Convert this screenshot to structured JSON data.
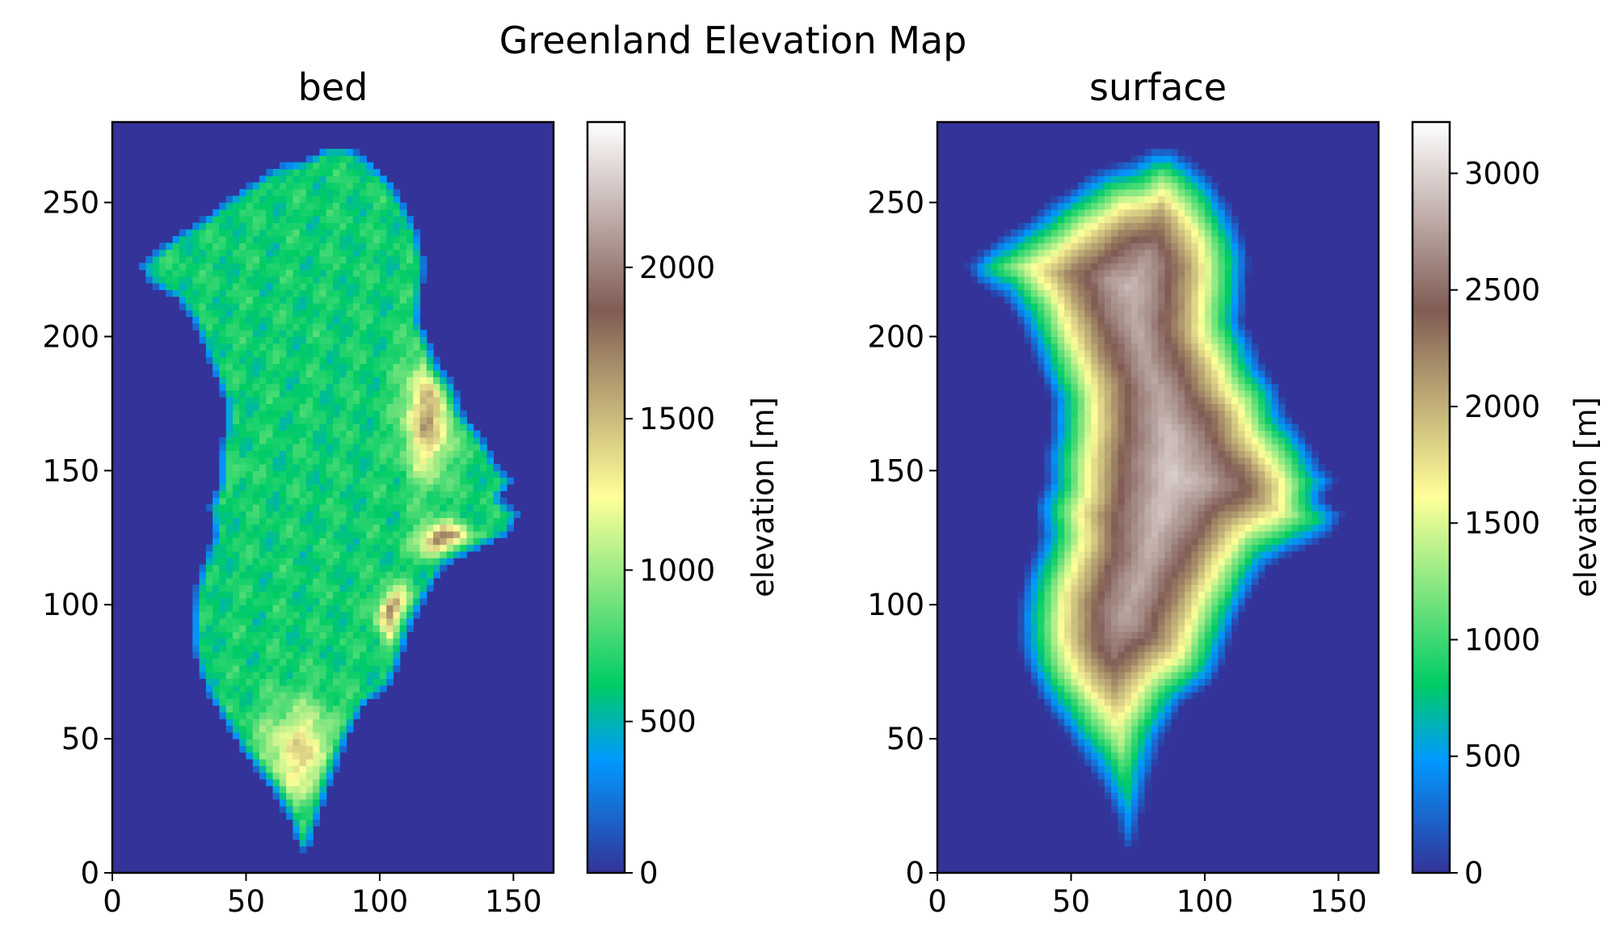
{
  "figure": {
    "suptitle": "Greenland Elevation Map"
  },
  "chart_data": [
    {
      "type": "heatmap",
      "title": "bed",
      "xlabel": "",
      "ylabel": "",
      "xlim": [
        0,
        165
      ],
      "ylim": [
        0,
        280
      ],
      "xticks": [
        "0",
        "50",
        "100",
        "150"
      ],
      "yticks": [
        "0",
        "50",
        "100",
        "150",
        "200",
        "250"
      ],
      "colormap": "terrain",
      "colorbar": {
        "label": "elevation [m]",
        "range": [
          0,
          2480
        ],
        "ticks": [
          "0",
          "500",
          "1000",
          "1500",
          "2000"
        ]
      },
      "ocean_color": "#333399",
      "features": {
        "interior_range": [
          500,
          1300
        ],
        "east_mountains_range": [
          1500,
          2400
        ],
        "south_mountains_range": [
          1300,
          1900
        ],
        "max_region": [
          106,
          93
        ]
      },
      "grid": false
    },
    {
      "type": "heatmap",
      "title": "surface",
      "xlabel": "",
      "ylabel": "",
      "xlim": [
        0,
        165
      ],
      "ylim": [
        0,
        280
      ],
      "xticks": [
        "0",
        "50",
        "100",
        "150"
      ],
      "yticks": [
        "0",
        "50",
        "100",
        "150",
        "200",
        "250"
      ],
      "colormap": "terrain",
      "colorbar": {
        "label": "elevation [m]",
        "range": [
          0,
          3220
        ],
        "ticks": [
          "0",
          "500",
          "1000",
          "1500",
          "2000",
          "2500",
          "3000"
        ]
      },
      "ocean_color": "#333399",
      "features": {
        "ice_sheet_peak": 3200,
        "peak_location": [
          88,
          150
        ],
        "coast_range": [
          0,
          1200
        ]
      },
      "grid": false
    }
  ]
}
